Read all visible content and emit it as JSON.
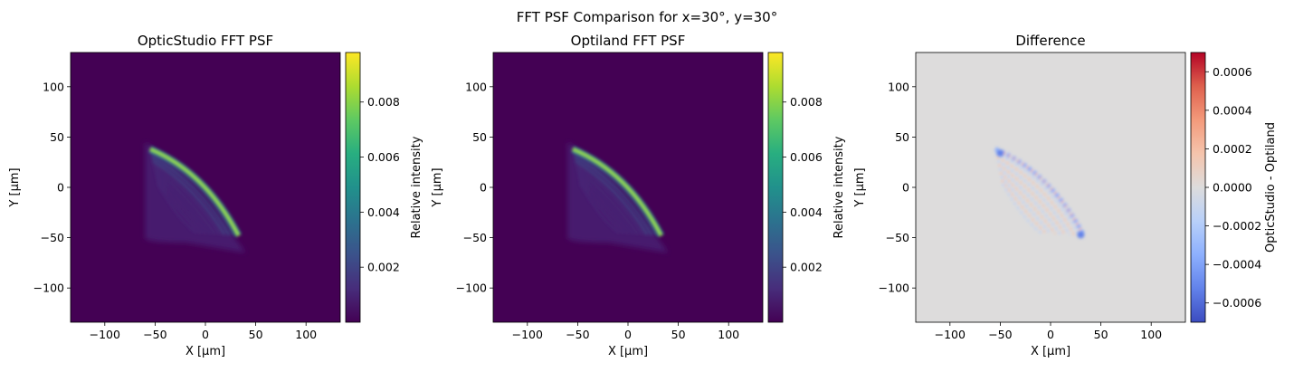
{
  "figure": {
    "suptitle": "FFT PSF Comparison for x=30°, y=30°"
  },
  "chart_data": [
    {
      "type": "heatmap",
      "title": "OpticStudio FFT PSF",
      "xlabel": "X [µm]",
      "ylabel": "Y [µm]",
      "xlim": [
        -134,
        134
      ],
      "ylim": [
        -134,
        134
      ],
      "xticks": [
        -100,
        -50,
        0,
        50,
        100
      ],
      "yticks": [
        -100,
        -50,
        0,
        50,
        100
      ],
      "xtick_labels": [
        "−100",
        "−50",
        "0",
        "50",
        "100"
      ],
      "ytick_labels": [
        "−100",
        "−50",
        "0",
        "50",
        "100"
      ],
      "colormap": "viridis",
      "colorbar_label": "Relative intensity",
      "colorbar_range": [
        0,
        0.0098
      ],
      "colorbar_ticks": [
        0.002,
        0.004,
        0.006,
        0.008
      ],
      "colorbar_tick_labels": [
        "0.002",
        "0.004",
        "0.006",
        "0.008"
      ],
      "background_color": "#440154"
    },
    {
      "type": "heatmap",
      "title": "Optiland FFT PSF",
      "xlabel": "X [µm]",
      "ylabel": "Y [µm]",
      "xlim": [
        -134,
        134
      ],
      "ylim": [
        -134,
        134
      ],
      "xticks": [
        -100,
        -50,
        0,
        50,
        100
      ],
      "yticks": [
        -100,
        -50,
        0,
        50,
        100
      ],
      "xtick_labels": [
        "−100",
        "−50",
        "0",
        "50",
        "100"
      ],
      "ytick_labels": [
        "−100",
        "−50",
        "0",
        "50",
        "100"
      ],
      "colormap": "viridis",
      "colorbar_label": "Relative intensity",
      "colorbar_range": [
        0,
        0.0098
      ],
      "colorbar_ticks": [
        0.002,
        0.004,
        0.006,
        0.008
      ],
      "colorbar_tick_labels": [
        "0.002",
        "0.004",
        "0.006",
        "0.008"
      ],
      "background_color": "#440154"
    },
    {
      "type": "heatmap",
      "title": "Difference",
      "xlabel": "X [µm]",
      "ylabel": "Y [µm]",
      "xlim": [
        -134,
        134
      ],
      "ylim": [
        -134,
        134
      ],
      "xticks": [
        -100,
        -50,
        0,
        50,
        100
      ],
      "yticks": [
        -100,
        -50,
        0,
        50,
        100
      ],
      "xtick_labels": [
        "−100",
        "−50",
        "0",
        "50",
        "100"
      ],
      "ytick_labels": [
        "−100",
        "−50",
        "0",
        "50",
        "100"
      ],
      "colormap": "coolwarm",
      "colorbar_label": "OpticStudio - Optiland",
      "colorbar_range": [
        -0.0007,
        0.0007
      ],
      "colorbar_ticks": [
        -0.0006,
        -0.0004,
        -0.0002,
        0.0,
        0.0002,
        0.0004,
        0.0006
      ],
      "colorbar_tick_labels": [
        "−0.0006",
        "−0.0004",
        "−0.0002",
        "0.0000",
        "0.0002",
        "0.0004",
        "0.0006"
      ],
      "background_color": "#dddcdc"
    }
  ]
}
